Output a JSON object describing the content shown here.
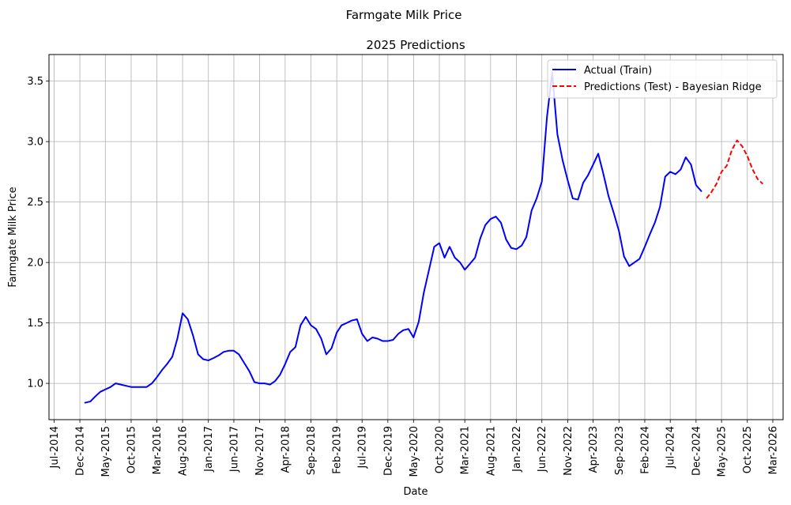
{
  "chart_data": {
    "type": "line",
    "suptitle": "Farmgate Milk Price",
    "title": "2025 Predictions",
    "xlabel": "Date",
    "ylabel": "Farmgate Milk Price",
    "xlim": [
      "2014-06-01",
      "2026-05-01"
    ],
    "ylim": [
      0.7,
      3.72
    ],
    "x_ticks": [
      {
        "date": "2014-07-01",
        "label": "Jul-2014"
      },
      {
        "date": "2014-12-01",
        "label": "Dec-2014"
      },
      {
        "date": "2015-05-01",
        "label": "May-2015"
      },
      {
        "date": "2015-10-01",
        "label": "Oct-2015"
      },
      {
        "date": "2016-03-01",
        "label": "Mar-2016"
      },
      {
        "date": "2016-08-01",
        "label": "Aug-2016"
      },
      {
        "date": "2017-01-01",
        "label": "Jan-2017"
      },
      {
        "date": "2017-06-01",
        "label": "Jun-2017"
      },
      {
        "date": "2017-11-01",
        "label": "Nov-2017"
      },
      {
        "date": "2018-04-01",
        "label": "Apr-2018"
      },
      {
        "date": "2018-09-01",
        "label": "Sep-2018"
      },
      {
        "date": "2019-02-01",
        "label": "Feb-2019"
      },
      {
        "date": "2019-07-01",
        "label": "Jul-2019"
      },
      {
        "date": "2019-12-01",
        "label": "Dec-2019"
      },
      {
        "date": "2020-05-01",
        "label": "May-2020"
      },
      {
        "date": "2020-10-01",
        "label": "Oct-2020"
      },
      {
        "date": "2021-03-01",
        "label": "Mar-2021"
      },
      {
        "date": "2021-08-01",
        "label": "Aug-2021"
      },
      {
        "date": "2022-01-01",
        "label": "Jan-2022"
      },
      {
        "date": "2022-06-01",
        "label": "Jun-2022"
      },
      {
        "date": "2022-11-01",
        "label": "Nov-2022"
      },
      {
        "date": "2023-04-01",
        "label": "Apr-2023"
      },
      {
        "date": "2023-09-01",
        "label": "Sep-2023"
      },
      {
        "date": "2024-02-01",
        "label": "Feb-2024"
      },
      {
        "date": "2024-07-01",
        "label": "Jul-2024"
      },
      {
        "date": "2024-12-01",
        "label": "Dec-2024"
      },
      {
        "date": "2025-05-01",
        "label": "May-2025"
      },
      {
        "date": "2025-10-01",
        "label": "Oct-2025"
      },
      {
        "date": "2026-03-01",
        "label": "Mar-2026"
      }
    ],
    "y_ticks": [
      {
        "value": 1.0,
        "label": "1.0"
      },
      {
        "value": 1.5,
        "label": "1.5"
      },
      {
        "value": 2.0,
        "label": "2.0"
      },
      {
        "value": 2.5,
        "label": "2.5"
      },
      {
        "value": 3.0,
        "label": "3.0"
      },
      {
        "value": 3.5,
        "label": "3.5"
      }
    ],
    "grid": true,
    "legend_position": "top-right",
    "series": [
      {
        "name": "Actual (Train)",
        "color": "#0000ff",
        "style": "solid",
        "points": [
          [
            "2015-01-01",
            0.84
          ],
          [
            "2015-02-01",
            0.85
          ],
          [
            "2015-03-01",
            0.89
          ],
          [
            "2015-04-01",
            0.93
          ],
          [
            "2015-05-01",
            0.95
          ],
          [
            "2015-06-01",
            0.97
          ],
          [
            "2015-07-01",
            1.0
          ],
          [
            "2015-08-01",
            0.99
          ],
          [
            "2015-09-01",
            0.98
          ],
          [
            "2015-10-01",
            0.97
          ],
          [
            "2015-11-01",
            0.97
          ],
          [
            "2015-12-01",
            0.97
          ],
          [
            "2016-01-01",
            0.97
          ],
          [
            "2016-02-01",
            1.0
          ],
          [
            "2016-03-01",
            1.05
          ],
          [
            "2016-04-01",
            1.11
          ],
          [
            "2016-05-01",
            1.16
          ],
          [
            "2016-06-01",
            1.22
          ],
          [
            "2016-07-01",
            1.37
          ],
          [
            "2016-08-01",
            1.58
          ],
          [
            "2016-09-01",
            1.53
          ],
          [
            "2016-10-01",
            1.4
          ],
          [
            "2016-11-01",
            1.24
          ],
          [
            "2016-12-01",
            1.2
          ],
          [
            "2017-01-01",
            1.19
          ],
          [
            "2017-02-01",
            1.21
          ],
          [
            "2017-03-01",
            1.23
          ],
          [
            "2017-04-01",
            1.26
          ],
          [
            "2017-05-01",
            1.27
          ],
          [
            "2017-06-01",
            1.27
          ],
          [
            "2017-07-01",
            1.24
          ],
          [
            "2017-08-01",
            1.17
          ],
          [
            "2017-09-01",
            1.1
          ],
          [
            "2017-10-01",
            1.01
          ],
          [
            "2017-11-01",
            1.0
          ],
          [
            "2017-12-01",
            1.0
          ],
          [
            "2018-01-01",
            0.99
          ],
          [
            "2018-02-01",
            1.02
          ],
          [
            "2018-03-01",
            1.07
          ],
          [
            "2018-04-01",
            1.16
          ],
          [
            "2018-05-01",
            1.26
          ],
          [
            "2018-06-01",
            1.3
          ],
          [
            "2018-07-01",
            1.48
          ],
          [
            "2018-08-01",
            1.55
          ],
          [
            "2018-09-01",
            1.48
          ],
          [
            "2018-10-01",
            1.45
          ],
          [
            "2018-11-01",
            1.37
          ],
          [
            "2018-12-01",
            1.24
          ],
          [
            "2019-01-01",
            1.29
          ],
          [
            "2019-02-01",
            1.42
          ],
          [
            "2019-03-01",
            1.48
          ],
          [
            "2019-04-01",
            1.5
          ],
          [
            "2019-05-01",
            1.52
          ],
          [
            "2019-06-01",
            1.53
          ],
          [
            "2019-07-01",
            1.41
          ],
          [
            "2019-08-01",
            1.35
          ],
          [
            "2019-09-01",
            1.38
          ],
          [
            "2019-10-01",
            1.37
          ],
          [
            "2019-11-01",
            1.35
          ],
          [
            "2019-12-01",
            1.35
          ],
          [
            "2020-01-01",
            1.36
          ],
          [
            "2020-02-01",
            1.41
          ],
          [
            "2020-03-01",
            1.44
          ],
          [
            "2020-04-01",
            1.45
          ],
          [
            "2020-05-01",
            1.38
          ],
          [
            "2020-06-01",
            1.51
          ],
          [
            "2020-07-01",
            1.75
          ],
          [
            "2020-08-01",
            1.94
          ],
          [
            "2020-09-01",
            2.13
          ],
          [
            "2020-10-01",
            2.16
          ],
          [
            "2020-11-01",
            2.04
          ],
          [
            "2020-12-01",
            2.13
          ],
          [
            "2021-01-01",
            2.04
          ],
          [
            "2021-02-01",
            2.0
          ],
          [
            "2021-03-01",
            1.94
          ],
          [
            "2021-04-01",
            1.99
          ],
          [
            "2021-05-01",
            2.04
          ],
          [
            "2021-06-01",
            2.2
          ],
          [
            "2021-07-01",
            2.31
          ],
          [
            "2021-08-01",
            2.36
          ],
          [
            "2021-09-01",
            2.38
          ],
          [
            "2021-10-01",
            2.33
          ],
          [
            "2021-11-01",
            2.19
          ],
          [
            "2021-12-01",
            2.12
          ],
          [
            "2022-01-01",
            2.11
          ],
          [
            "2022-02-01",
            2.14
          ],
          [
            "2022-03-01",
            2.21
          ],
          [
            "2022-04-01",
            2.43
          ],
          [
            "2022-05-01",
            2.53
          ],
          [
            "2022-06-01",
            2.67
          ],
          [
            "2022-07-01",
            3.2
          ],
          [
            "2022-08-01",
            3.57
          ],
          [
            "2022-09-01",
            3.06
          ],
          [
            "2022-10-01",
            2.85
          ],
          [
            "2022-11-01",
            2.68
          ],
          [
            "2022-12-01",
            2.53
          ],
          [
            "2023-01-01",
            2.52
          ],
          [
            "2023-02-01",
            2.66
          ],
          [
            "2023-03-01",
            2.72
          ],
          [
            "2023-04-01",
            2.81
          ],
          [
            "2023-05-01",
            2.9
          ],
          [
            "2023-06-01",
            2.73
          ],
          [
            "2023-07-01",
            2.55
          ],
          [
            "2023-08-01",
            2.41
          ],
          [
            "2023-09-01",
            2.26
          ],
          [
            "2023-10-01",
            2.05
          ],
          [
            "2023-11-01",
            1.97
          ],
          [
            "2023-12-01",
            2.0
          ],
          [
            "2024-01-01",
            2.03
          ],
          [
            "2024-02-01",
            2.13
          ],
          [
            "2024-03-01",
            2.23
          ],
          [
            "2024-04-01",
            2.33
          ],
          [
            "2024-05-01",
            2.46
          ],
          [
            "2024-06-01",
            2.71
          ],
          [
            "2024-07-01",
            2.75
          ],
          [
            "2024-08-01",
            2.73
          ],
          [
            "2024-09-01",
            2.77
          ],
          [
            "2024-10-01",
            2.87
          ],
          [
            "2024-11-01",
            2.81
          ],
          [
            "2024-12-01",
            2.64
          ],
          [
            "2025-01-01",
            2.59
          ]
        ]
      },
      {
        "name": "Predictions (Test) - Bayesian Ridge",
        "color": "#ff0000",
        "style": "dashed",
        "points": [
          [
            "2025-02-01",
            2.53
          ],
          [
            "2025-03-01",
            2.58
          ],
          [
            "2025-04-01",
            2.65
          ],
          [
            "2025-05-01",
            2.75
          ],
          [
            "2025-06-01",
            2.8
          ],
          [
            "2025-07-01",
            2.93
          ],
          [
            "2025-08-01",
            3.01
          ],
          [
            "2025-09-01",
            2.96
          ],
          [
            "2025-10-01",
            2.88
          ],
          [
            "2025-11-01",
            2.77
          ],
          [
            "2025-12-01",
            2.69
          ],
          [
            "2026-01-01",
            2.65
          ]
        ]
      }
    ]
  }
}
